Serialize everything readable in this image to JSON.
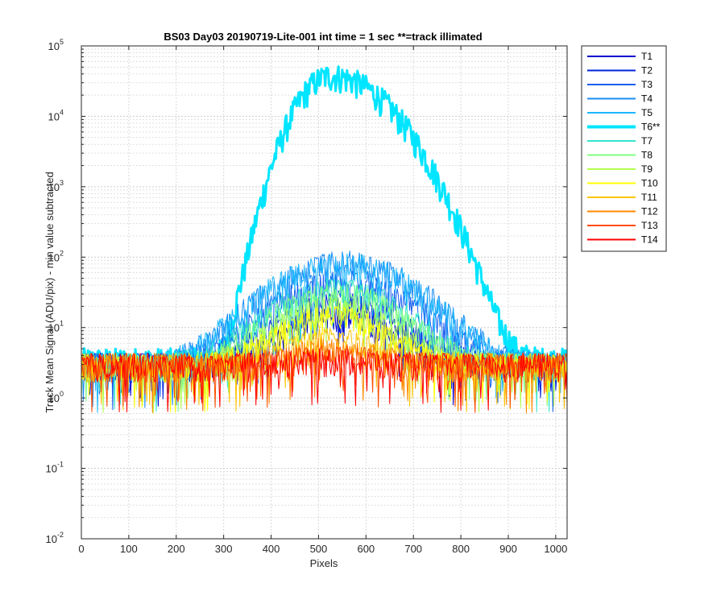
{
  "chart_data": {
    "type": "line",
    "title": "BS03 Day03 20190719-Lite-001 int time = 1 sec    **=track illimated",
    "xlabel": "Pixels",
    "ylabel": "Track Mean Signal (ADU/pix) - min value subtracted",
    "x_range": [
      0,
      1024
    ],
    "y_range": [
      0.01,
      100000
    ],
    "y_scale": "log",
    "grid": "on",
    "minor_grid": "on",
    "legend_position": "outside-right",
    "x_ticks": [
      "0",
      "100",
      "200",
      "300",
      "400",
      "500",
      "600",
      "700",
      "800",
      "900",
      "1000"
    ],
    "x_tick_values": [
      0,
      100,
      200,
      300,
      400,
      500,
      600,
      700,
      800,
      900,
      1000
    ],
    "y_ticks": [
      {
        "base": "10",
        "exp": "-2",
        "value": 0.01
      },
      {
        "base": "10",
        "exp": "-1",
        "value": 0.1
      },
      {
        "base": "10",
        "exp": "0",
        "value": 1
      },
      {
        "base": "10",
        "exp": "1",
        "value": 10
      },
      {
        "base": "10",
        "exp": "2",
        "value": 100
      },
      {
        "base": "10",
        "exp": "3",
        "value": 1000
      },
      {
        "base": "10",
        "exp": "4",
        "value": 10000
      },
      {
        "base": "10",
        "exp": "5",
        "value": 100000
      }
    ],
    "series": [
      {
        "name": "T1",
        "color": "#0000cc",
        "baseline": 3.0,
        "peak": 14,
        "center": 545,
        "width": 95,
        "bold": false
      },
      {
        "name": "T2",
        "color": "#0022dd",
        "baseline": 3.0,
        "peak": 22,
        "center": 545,
        "width": 100,
        "bold": false
      },
      {
        "name": "T3",
        "color": "#1a5ff0",
        "baseline": 3.0,
        "peak": 45,
        "center": 555,
        "width": 110,
        "bold": false
      },
      {
        "name": "T4",
        "color": "#1a8cf5",
        "baseline": 3.0,
        "peak": 85,
        "center": 555,
        "width": 115,
        "bold": false
      },
      {
        "name": "T5",
        "color": "#1ab8ff",
        "baseline": 3.0,
        "peak": 80,
        "center": 550,
        "width": 115,
        "bold": false
      },
      {
        "name": "T6**",
        "color": "#00e5ff",
        "baseline": 3.5,
        "peak": 38000,
        "center": 525,
        "width": 60,
        "bold": true
      },
      {
        "name": "T7",
        "color": "#33e6cc",
        "baseline": 3.0,
        "peak": 35,
        "center": 540,
        "width": 105,
        "bold": false
      },
      {
        "name": "T8",
        "color": "#80ff80",
        "baseline": 3.0,
        "peak": 30,
        "center": 540,
        "width": 100,
        "bold": false
      },
      {
        "name": "T9",
        "color": "#b3ff4d",
        "baseline": 3.0,
        "peak": 19,
        "center": 530,
        "width": 95,
        "bold": false
      },
      {
        "name": "T10",
        "color": "#ffff00",
        "baseline": 3.0,
        "peak": 14,
        "center": 530,
        "width": 90,
        "bold": false
      },
      {
        "name": "T11",
        "color": "#ffc400",
        "baseline": 3.0,
        "peak": 7,
        "center": 530,
        "width": 85,
        "bold": false
      },
      {
        "name": "T12",
        "color": "#ff8800",
        "baseline": 3.0,
        "peak": 5,
        "center": 530,
        "width": 80,
        "bold": false
      },
      {
        "name": "T13",
        "color": "#ff4d00",
        "baseline": 3.0,
        "peak": 4,
        "center": 530,
        "width": 80,
        "bold": false
      },
      {
        "name": "T14",
        "color": "#ff0000",
        "baseline": 3.0,
        "peak": 3.5,
        "center": 530,
        "width": 80,
        "bold": false
      }
    ]
  }
}
